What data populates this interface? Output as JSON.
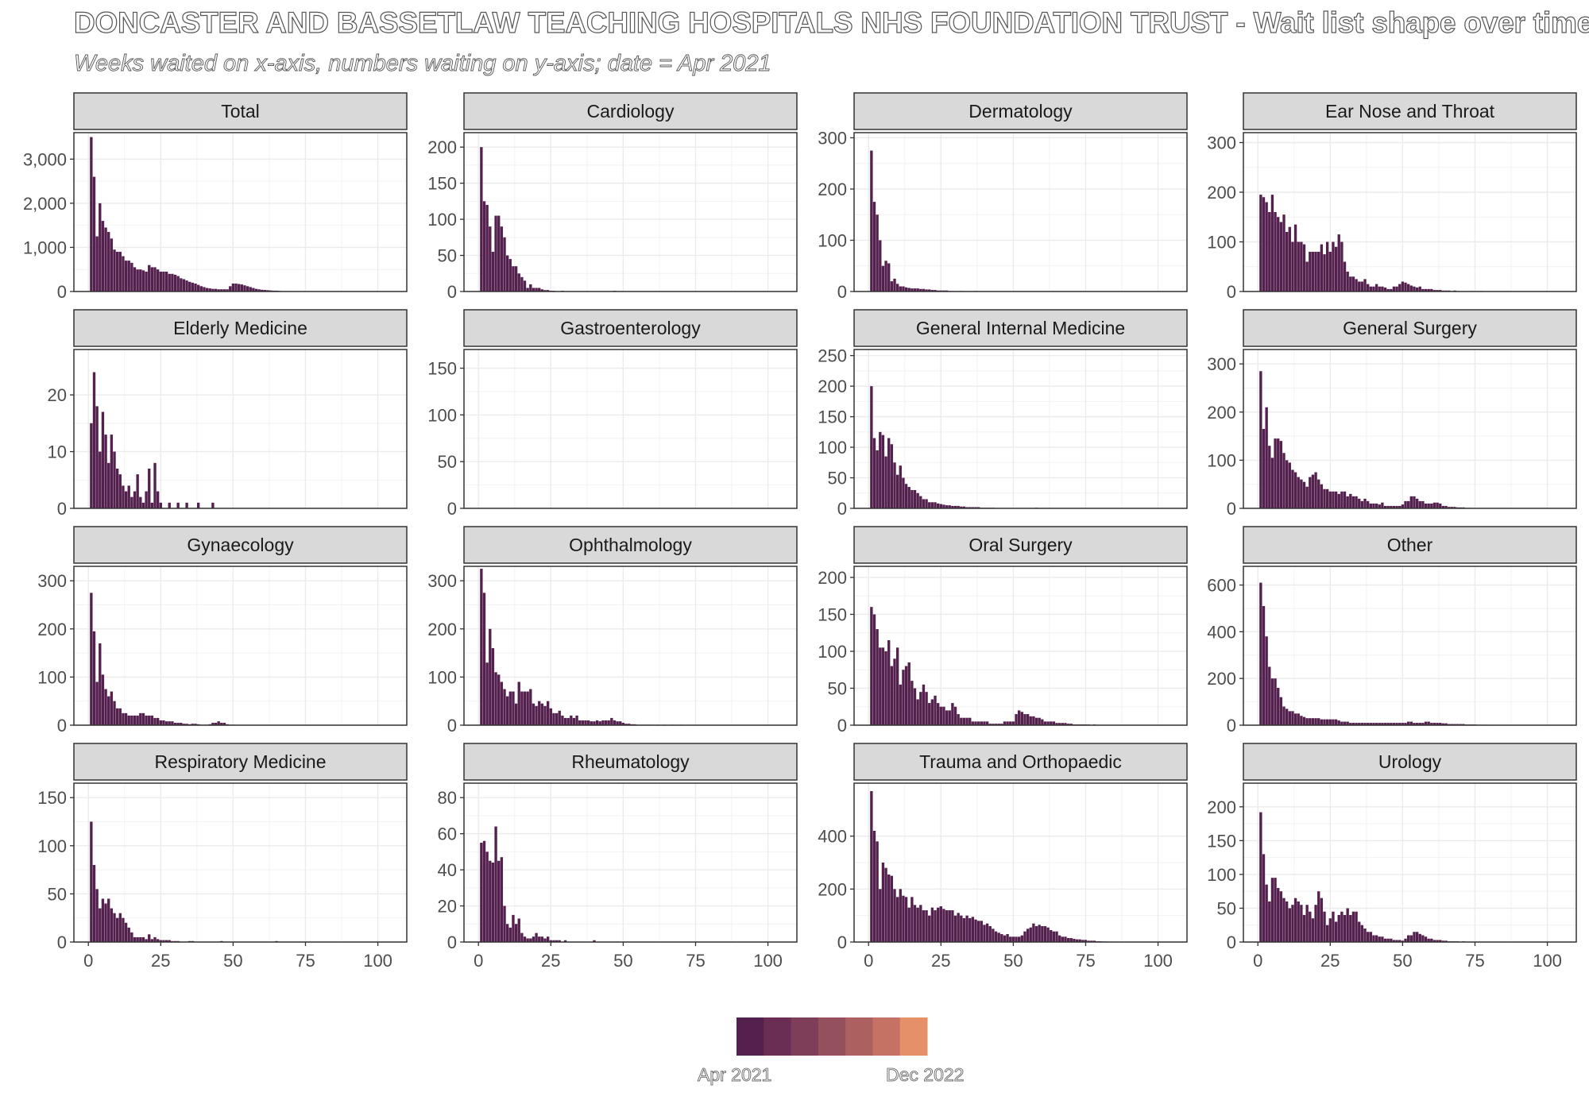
{
  "title": "DONCASTER AND BASSETLAW TEACHING HOSPITALS NHS FOUNDATION TRUST - Wait list shape over time",
  "subtitle": "Weeks waited on x-axis, numbers waiting on y-axis; date = Apr 2021",
  "legend": {
    "colors": [
      "#54204e",
      "#6a2e54",
      "#7e3e59",
      "#95505d",
      "#ac6060",
      "#c57265",
      "#e59069"
    ],
    "start_label": "Apr 2021",
    "end_label": "Dec 2022"
  },
  "chart_data": [
    {
      "type": "bar",
      "panel": "Total",
      "xlim": [
        -5,
        110
      ],
      "ylim": [
        0,
        3600
      ],
      "yticks": [
        0,
        1000,
        2000,
        3000
      ],
      "ytick_labels": [
        "0",
        "1,000",
        "2,000",
        "3,000"
      ],
      "values": [
        3500,
        2600,
        1250,
        2000,
        1600,
        1450,
        1350,
        1200,
        950,
        900,
        900,
        800,
        700,
        700,
        650,
        550,
        500,
        500,
        480,
        450,
        600,
        550,
        550,
        500,
        450,
        450,
        450,
        400,
        400,
        380,
        350,
        300,
        280,
        250,
        220,
        200,
        180,
        150,
        120,
        100,
        80,
        70,
        60,
        60,
        50,
        50,
        50,
        50,
        120,
        180,
        180,
        170,
        160,
        140,
        120,
        100,
        80,
        60,
        50,
        40,
        35,
        30,
        25,
        20,
        20,
        15,
        10,
        10
      ]
    },
    {
      "type": "bar",
      "panel": "Cardiology",
      "xlim": [
        -5,
        110
      ],
      "ylim": [
        0,
        220
      ],
      "yticks": [
        0,
        50,
        100,
        150,
        200
      ],
      "ytick_labels": [
        "0",
        "50",
        "100",
        "150",
        "200"
      ],
      "values": [
        200,
        125,
        120,
        90,
        55,
        105,
        105,
        90,
        75,
        50,
        45,
        35,
        35,
        25,
        20,
        15,
        5,
        10,
        5,
        5,
        5,
        3,
        2,
        2,
        1,
        1,
        0,
        0,
        1,
        0,
        0,
        0,
        0,
        0,
        0,
        0,
        0,
        0,
        0,
        0,
        0,
        0,
        0,
        0,
        0,
        0,
        1
      ]
    },
    {
      "type": "bar",
      "panel": "Dermatology",
      "xlim": [
        -5,
        110
      ],
      "ylim": [
        0,
        310
      ],
      "yticks": [
        0,
        100,
        200,
        300
      ],
      "ytick_labels": [
        "0",
        "100",
        "200",
        "300"
      ],
      "values": [
        275,
        175,
        150,
        100,
        50,
        60,
        55,
        20,
        25,
        15,
        10,
        10,
        8,
        7,
        6,
        6,
        6,
        5,
        5,
        4,
        4,
        3,
        3,
        2,
        2,
        2,
        2,
        1,
        1,
        0,
        0,
        1,
        0,
        0,
        0,
        0,
        1
      ]
    },
    {
      "type": "bar",
      "panel": "Ear Nose and Throat",
      "xlim": [
        -5,
        110
      ],
      "ylim": [
        0,
        320
      ],
      "yticks": [
        0,
        100,
        200,
        300
      ],
      "ytick_labels": [
        "0",
        "100",
        "200",
        "300"
      ],
      "values": [
        195,
        190,
        180,
        160,
        195,
        160,
        150,
        140,
        155,
        120,
        130,
        100,
        135,
        100,
        100,
        95,
        60,
        80,
        80,
        80,
        80,
        95,
        75,
        100,
        80,
        100,
        90,
        115,
        100,
        60,
        40,
        30,
        30,
        25,
        20,
        20,
        25,
        15,
        10,
        10,
        15,
        10,
        10,
        8,
        5,
        5,
        10,
        10,
        15,
        20,
        18,
        15,
        12,
        10,
        8,
        10,
        5,
        5,
        5,
        5,
        3,
        3,
        3,
        2,
        2,
        2,
        1,
        2,
        1,
        0,
        0,
        0,
        0,
        1,
        0,
        0,
        1
      ]
    },
    {
      "type": "bar",
      "panel": "Elderly Medicine",
      "xlim": [
        -5,
        110
      ],
      "ylim": [
        0,
        28
      ],
      "yticks": [
        0,
        10,
        20
      ],
      "ytick_labels": [
        "0",
        "10",
        "20"
      ],
      "values": [
        15,
        24,
        18,
        10,
        17,
        13,
        8,
        13,
        10,
        7,
        6,
        4,
        3,
        4,
        2,
        3,
        6,
        2,
        1,
        3,
        7,
        1,
        8,
        3,
        1,
        0,
        0,
        1,
        0,
        0,
        1,
        0,
        0,
        1,
        0,
        0,
        0,
        1,
        0,
        0,
        0,
        0,
        1
      ]
    },
    {
      "type": "bar",
      "panel": "Gastroenterology",
      "xlim": [
        -5,
        110
      ],
      "ylim": [
        0,
        170
      ],
      "yticks": [
        0,
        50,
        100,
        150
      ],
      "ytick_labels": [
        "0",
        "50",
        "100",
        "150"
      ],
      "values": []
    },
    {
      "type": "bar",
      "panel": "General Internal Medicine",
      "xlim": [
        -5,
        110
      ],
      "ylim": [
        0,
        260
      ],
      "yticks": [
        0,
        50,
        100,
        150,
        200,
        250
      ],
      "ytick_labels": [
        "0",
        "50",
        "100",
        "150",
        "200",
        "250"
      ],
      "values": [
        200,
        115,
        95,
        125,
        120,
        85,
        115,
        105,
        75,
        55,
        70,
        50,
        40,
        35,
        30,
        30,
        25,
        20,
        15,
        15,
        10,
        10,
        10,
        8,
        7,
        6,
        5,
        5,
        4,
        4,
        4,
        3,
        3,
        2,
        2,
        2,
        2,
        2,
        1,
        1,
        1,
        1,
        1,
        0,
        0,
        0,
        0,
        0,
        0,
        0,
        0,
        0,
        0,
        0,
        0,
        0,
        0,
        1
      ]
    },
    {
      "type": "bar",
      "panel": "General Surgery",
      "xlim": [
        -5,
        110
      ],
      "ylim": [
        0,
        330
      ],
      "yticks": [
        0,
        100,
        200,
        300
      ],
      "ytick_labels": [
        "0",
        "100",
        "200",
        "300"
      ],
      "values": [
        285,
        165,
        210,
        130,
        105,
        145,
        145,
        140,
        115,
        100,
        95,
        80,
        75,
        65,
        60,
        55,
        45,
        65,
        70,
        75,
        60,
        50,
        40,
        40,
        35,
        35,
        35,
        30,
        35,
        35,
        25,
        30,
        25,
        25,
        20,
        15,
        20,
        15,
        10,
        10,
        10,
        8,
        12,
        5,
        5,
        5,
        5,
        5,
        5,
        8,
        15,
        15,
        25,
        25,
        20,
        15,
        15,
        10,
        10,
        10,
        12,
        12,
        10,
        5,
        5,
        3,
        3,
        3,
        2,
        2,
        2,
        1,
        1
      ]
    },
    {
      "type": "bar",
      "panel": "Gynaecology",
      "xlim": [
        -5,
        110
      ],
      "ylim": [
        0,
        330
      ],
      "yticks": [
        0,
        100,
        200,
        300
      ],
      "ytick_labels": [
        "0",
        "100",
        "200",
        "300"
      ],
      "values": [
        275,
        195,
        90,
        170,
        105,
        75,
        60,
        70,
        50,
        35,
        35,
        25,
        25,
        20,
        20,
        20,
        20,
        25,
        25,
        20,
        20,
        20,
        15,
        15,
        10,
        10,
        8,
        8,
        8,
        5,
        5,
        5,
        3,
        3,
        2,
        3,
        3,
        2,
        1,
        1,
        1,
        2,
        5,
        5,
        8,
        5,
        5,
        2,
        1,
        1
      ]
    },
    {
      "type": "bar",
      "panel": "Ophthalmology",
      "xlim": [
        -5,
        110
      ],
      "ylim": [
        0,
        330
      ],
      "yticks": [
        0,
        100,
        200,
        300
      ],
      "ytick_labels": [
        "0",
        "100",
        "200",
        "300"
      ],
      "values": [
        325,
        275,
        130,
        200,
        160,
        110,
        105,
        90,
        75,
        60,
        70,
        70,
        45,
        90,
        70,
        70,
        70,
        75,
        45,
        40,
        50,
        45,
        40,
        50,
        35,
        25,
        25,
        30,
        20,
        15,
        15,
        20,
        15,
        20,
        10,
        10,
        10,
        10,
        8,
        8,
        10,
        8,
        10,
        10,
        10,
        15,
        10,
        8,
        8,
        5,
        3,
        3,
        2,
        2,
        1,
        1,
        1,
        1,
        1,
        1,
        0,
        1,
        0,
        1,
        0,
        0,
        1,
        0,
        0,
        1
      ]
    },
    {
      "type": "bar",
      "panel": "Oral Surgery",
      "xlim": [
        -5,
        110
      ],
      "ylim": [
        0,
        215
      ],
      "yticks": [
        0,
        50,
        100,
        150,
        200
      ],
      "ytick_labels": [
        "0",
        "50",
        "100",
        "150",
        "200"
      ],
      "values": [
        160,
        150,
        130,
        105,
        105,
        100,
        115,
        80,
        90,
        105,
        55,
        75,
        80,
        85,
        60,
        50,
        35,
        45,
        55,
        45,
        30,
        35,
        40,
        30,
        25,
        25,
        20,
        20,
        30,
        25,
        15,
        10,
        10,
        10,
        10,
        5,
        5,
        5,
        5,
        5,
        5,
        2,
        2,
        2,
        2,
        2,
        5,
        5,
        5,
        5,
        15,
        20,
        18,
        15,
        15,
        12,
        12,
        10,
        10,
        8,
        5,
        5,
        5,
        5,
        3,
        3,
        3,
        3,
        2,
        2,
        1,
        1,
        1,
        1,
        1,
        1,
        0,
        1
      ]
    },
    {
      "type": "bar",
      "panel": "Other",
      "xlim": [
        -5,
        110
      ],
      "ylim": [
        0,
        680
      ],
      "yticks": [
        0,
        200,
        400,
        600
      ],
      "ytick_labels": [
        "0",
        "200",
        "400",
        "600"
      ],
      "values": [
        610,
        510,
        380,
        250,
        200,
        200,
        160,
        120,
        80,
        70,
        60,
        60,
        50,
        50,
        40,
        35,
        30,
        30,
        30,
        30,
        30,
        25,
        25,
        25,
        25,
        25,
        25,
        20,
        15,
        15,
        15,
        10,
        10,
        10,
        10,
        10,
        10,
        10,
        10,
        10,
        10,
        10,
        10,
        10,
        10,
        10,
        10,
        10,
        10,
        10,
        10,
        15,
        15,
        10,
        10,
        10,
        10,
        15,
        15,
        10,
        10,
        10,
        10,
        8,
        8,
        5,
        5,
        5,
        5,
        5,
        5,
        3,
        3,
        3,
        3,
        2,
        2,
        2,
        2,
        1,
        1,
        1,
        1
      ]
    },
    {
      "type": "bar",
      "panel": "Respiratory Medicine",
      "xlim": [
        -5,
        110
      ],
      "ylim": [
        0,
        165
      ],
      "yticks": [
        0,
        50,
        100,
        150
      ],
      "ytick_labels": [
        "0",
        "50",
        "100",
        "150"
      ],
      "values": [
        125,
        80,
        55,
        35,
        45,
        40,
        45,
        35,
        30,
        25,
        30,
        25,
        20,
        15,
        10,
        5,
        5,
        5,
        5,
        3,
        8,
        3,
        5,
        3,
        2,
        2,
        2,
        2,
        1,
        1,
        1,
        0,
        0,
        0,
        1,
        1,
        0,
        0,
        0,
        0,
        0,
        0,
        0,
        0,
        0,
        1,
        0,
        0,
        0,
        0,
        0,
        0,
        0,
        0,
        0,
        0,
        0,
        0,
        0,
        0,
        0,
        0,
        0,
        0,
        1
      ]
    },
    {
      "type": "bar",
      "panel": "Rheumatology",
      "xlim": [
        -5,
        110
      ],
      "ylim": [
        0,
        88
      ],
      "yticks": [
        0,
        20,
        40,
        60,
        80
      ],
      "ytick_labels": [
        "0",
        "20",
        "40",
        "60",
        "80"
      ],
      "values": [
        55,
        56,
        50,
        45,
        44,
        64,
        45,
        47,
        20,
        10,
        8,
        15,
        10,
        13,
        5,
        3,
        2,
        2,
        3,
        5,
        3,
        3,
        2,
        3,
        1,
        1,
        1,
        1,
        0,
        1,
        0,
        0,
        0,
        0,
        0,
        0,
        0,
        0,
        0,
        1
      ]
    },
    {
      "type": "bar",
      "panel": "Trauma and Orthopaedic",
      "xlim": [
        -5,
        110
      ],
      "ylim": [
        0,
        600
      ],
      "yticks": [
        0,
        200,
        400
      ],
      "ytick_labels": [
        "0",
        "200",
        "400"
      ],
      "values": [
        570,
        420,
        380,
        200,
        300,
        280,
        255,
        250,
        200,
        170,
        200,
        175,
        170,
        130,
        170,
        140,
        130,
        140,
        120,
        120,
        100,
        130,
        120,
        130,
        135,
        125,
        120,
        120,
        120,
        100,
        110,
        100,
        90,
        100,
        90,
        95,
        85,
        80,
        80,
        65,
        70,
        60,
        50,
        40,
        35,
        30,
        25,
        30,
        20,
        20,
        20,
        20,
        25,
        40,
        50,
        55,
        70,
        60,
        65,
        60,
        60,
        55,
        45,
        40,
        40,
        25,
        20,
        20,
        15,
        15,
        12,
        10,
        10,
        8,
        8,
        5,
        5,
        5,
        3,
        3,
        2,
        2,
        1,
        1,
        1,
        1,
        1
      ]
    },
    {
      "type": "bar",
      "panel": "Urology",
      "xlim": [
        -5,
        110
      ],
      "ylim": [
        0,
        235
      ],
      "yticks": [
        0,
        50,
        100,
        150,
        200
      ],
      "ytick_labels": [
        "0",
        "50",
        "100",
        "150",
        "200"
      ],
      "values": [
        192,
        130,
        85,
        60,
        95,
        95,
        80,
        75,
        65,
        60,
        50,
        55,
        65,
        60,
        55,
        40,
        55,
        45,
        35,
        55,
        75,
        65,
        45,
        25,
        35,
        45,
        30,
        40,
        45,
        40,
        50,
        40,
        45,
        45,
        30,
        25,
        20,
        15,
        15,
        10,
        10,
        8,
        8,
        5,
        5,
        5,
        3,
        3,
        3,
        2,
        5,
        10,
        10,
        15,
        15,
        12,
        10,
        8,
        5,
        5,
        3,
        3,
        3,
        2,
        2,
        1,
        1,
        1,
        1,
        0,
        1
      ]
    }
  ],
  "x_axis": {
    "ticks": [
      0,
      25,
      50,
      75,
      100
    ],
    "tick_labels": [
      "0",
      "25",
      "50",
      "75",
      "100"
    ]
  }
}
